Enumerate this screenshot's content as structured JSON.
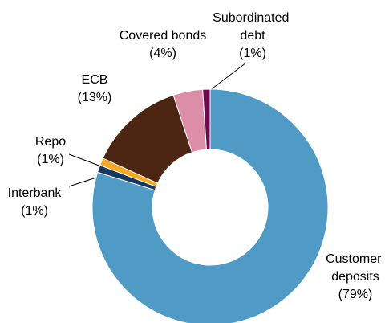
{
  "chart_data": {
    "type": "donut",
    "categories": [
      "Customer deposits",
      "Interbank",
      "Repo",
      "ECB",
      "Covered bonds",
      "Subordinated debt"
    ],
    "values": [
      79,
      1,
      1,
      13,
      4,
      1
    ],
    "value_labels": [
      "(79%)",
      "(1%)",
      "(1%)",
      "(13%)",
      "(4%)",
      "(1%)"
    ],
    "colors": [
      "#4f9bc6",
      "#17375e",
      "#f7a823",
      "#4d2613",
      "#dc8ea9",
      "#6a0b4f"
    ]
  }
}
